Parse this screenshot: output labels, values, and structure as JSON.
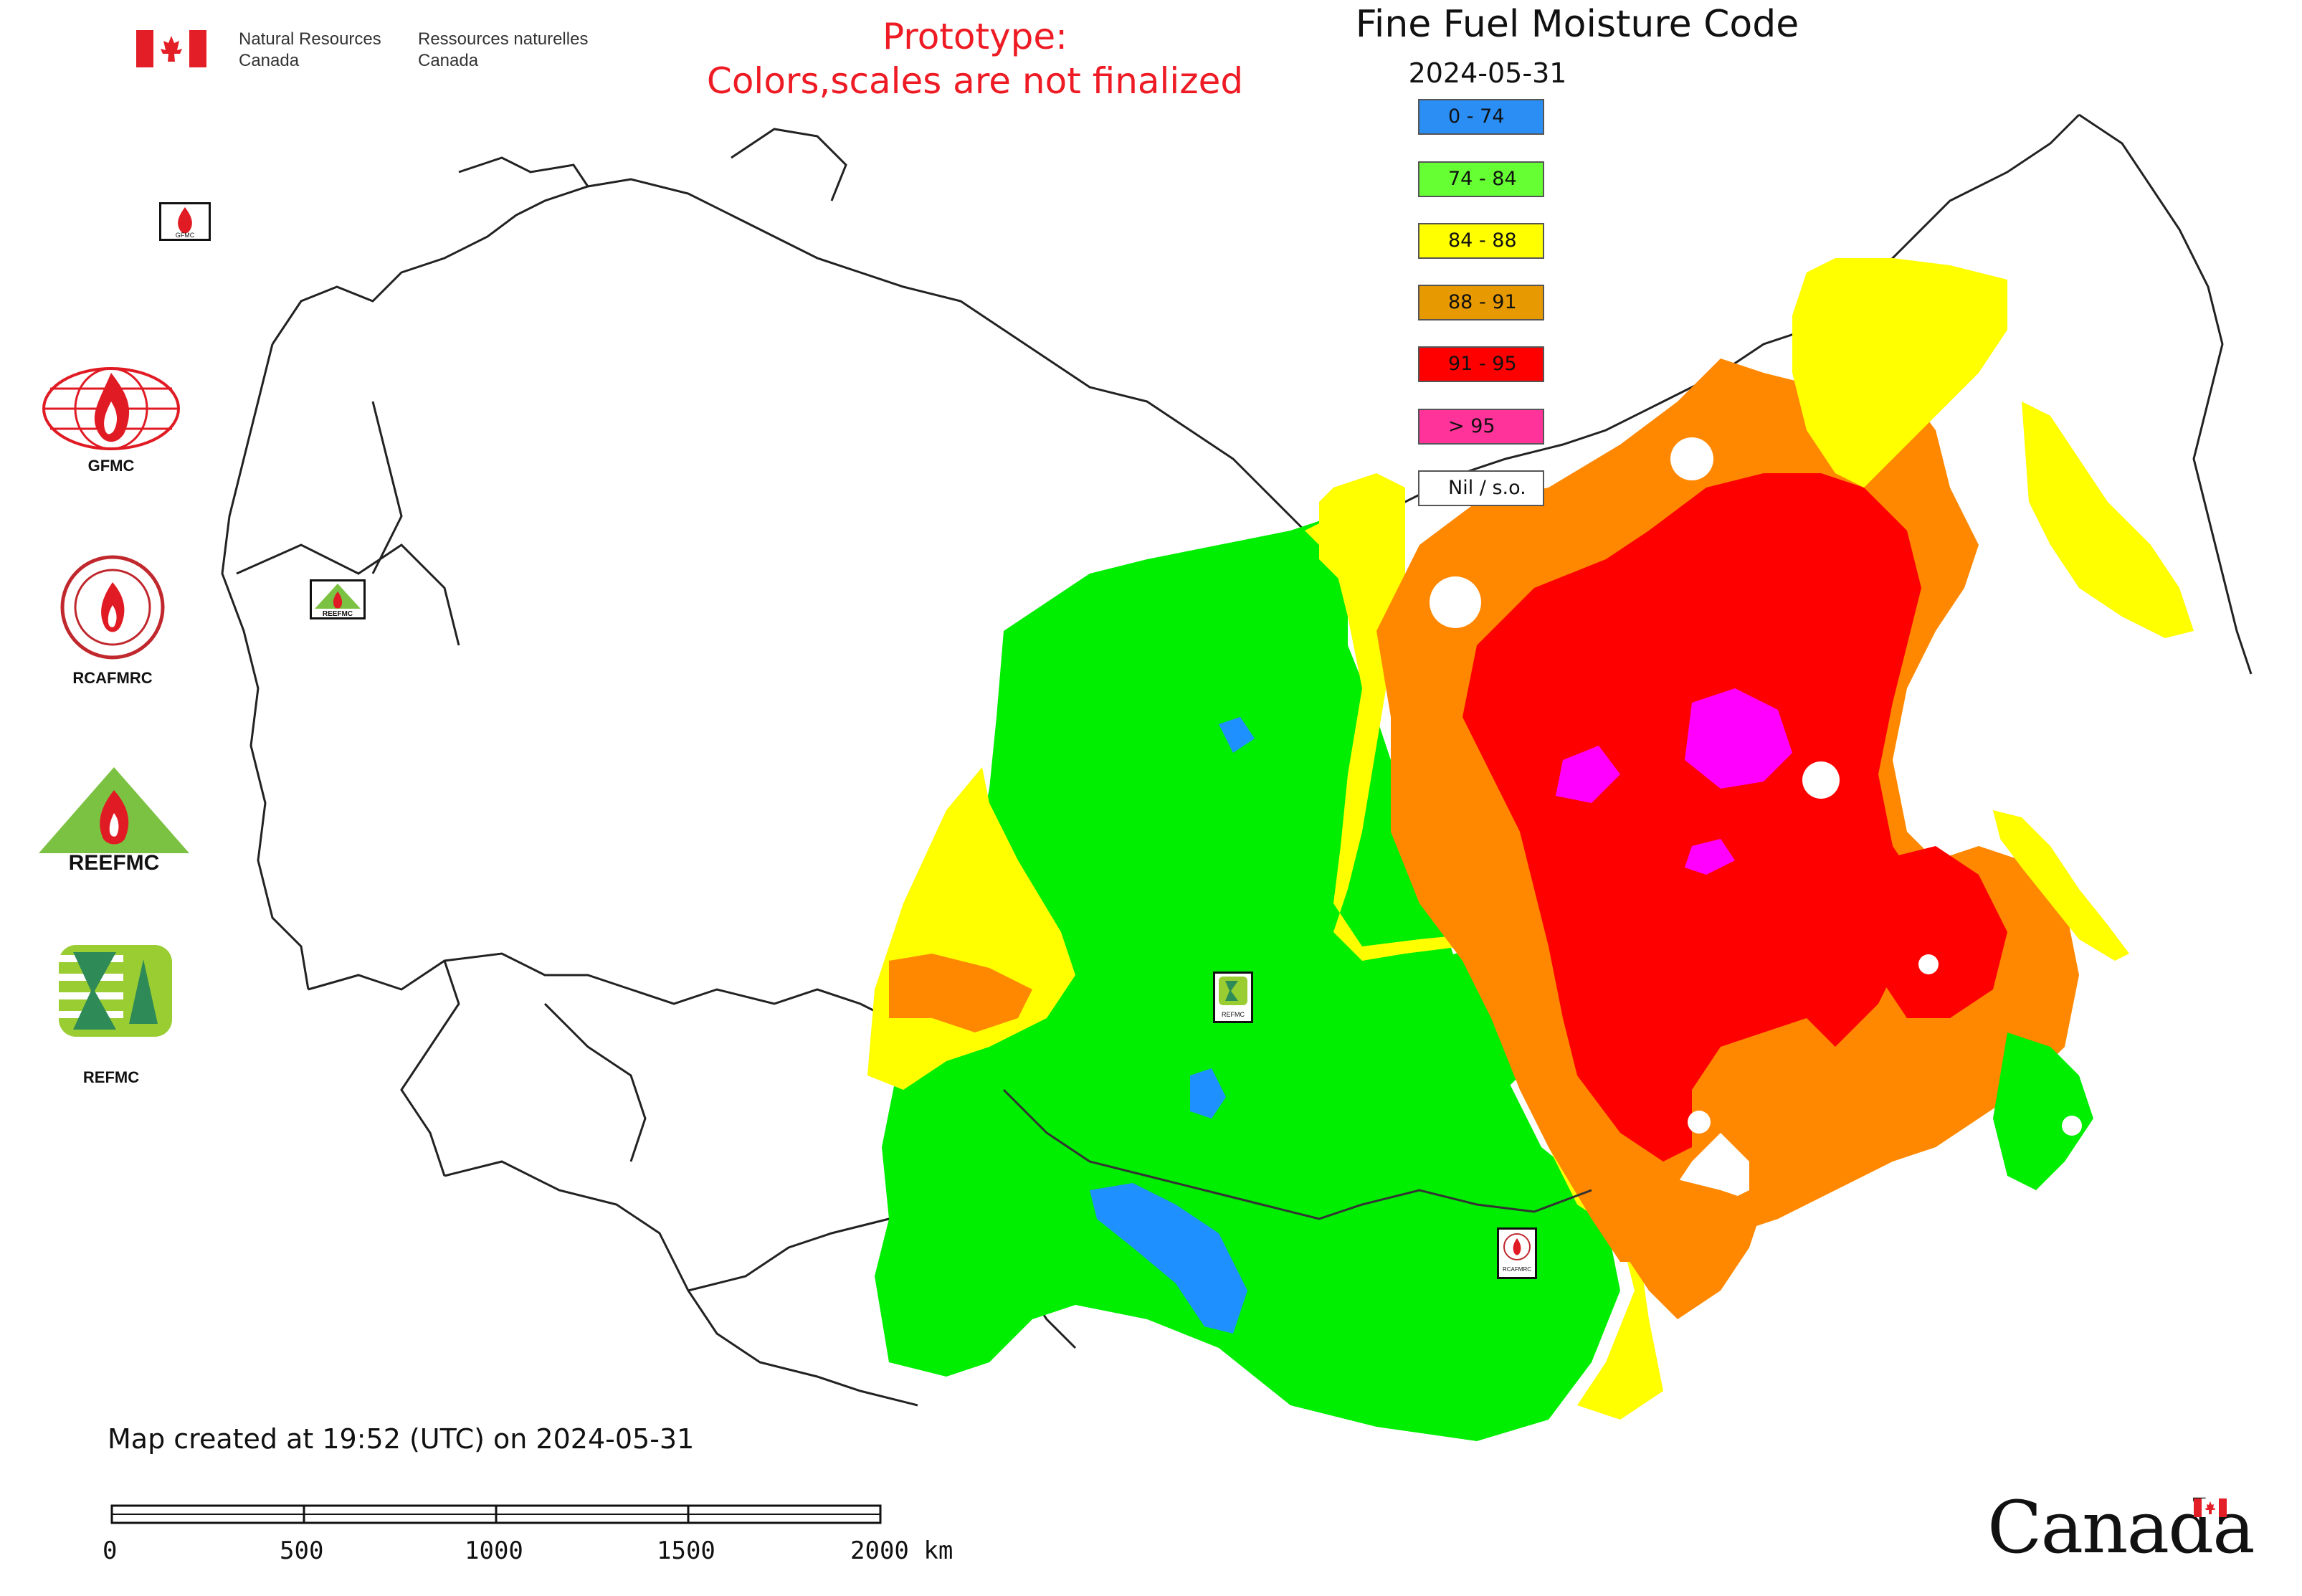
{
  "header": {
    "agency_en": [
      "Natural Resources",
      "Canada"
    ],
    "agency_fr": [
      "Ressources naturelles",
      "Canada"
    ],
    "prototype_line1": "Prototype:",
    "prototype_line2": "Colors,scales are not finalized"
  },
  "map": {
    "title": "Fine Fuel Moisture Code",
    "date": "2024-05-31",
    "created_note": "Map created at 19:52 (UTC) on 2024-05-31",
    "colors": {
      "green": "#00ee00",
      "yellow": "#ffff00",
      "orange": "#ff8800",
      "red": "#ff0000",
      "magenta": "#ff00ff",
      "blue": "#1e90ff"
    }
  },
  "legend": [
    {
      "label": "0 - 74",
      "color": "#2b8ef5"
    },
    {
      "label": "74 - 84",
      "color": "#66ff33"
    },
    {
      "label": "84 - 88",
      "color": "#ffff00"
    },
    {
      "label": "88 - 91",
      "color": "#e69900"
    },
    {
      "label": "91 - 95",
      "color": "#ff0000"
    },
    {
      "label": "> 95",
      "color": "#ff3399"
    },
    {
      "label": "Nil / s.o.",
      "color": "#ffffff"
    }
  ],
  "logos": [
    {
      "label": "GFMC",
      "icon": "gfmc-globe-flame-icon"
    },
    {
      "label": "RCAFMRC",
      "icon": "rcafmrc-seal-icon"
    },
    {
      "label": "",
      "icon": "reefmc-triangle-logo",
      "logo_text": "REEFMC"
    },
    {
      "label": "REFMC",
      "icon": "refmc-sigma-logo"
    }
  ],
  "map_station_labels": [
    "GFMC",
    "REFMC",
    "REEFMC",
    "RCAFMRC"
  ],
  "scale_bar": {
    "ticks": [
      "0",
      "500",
      "1000",
      "1500",
      "2000 km"
    ]
  },
  "footer": {
    "wordmark": "Canada"
  }
}
